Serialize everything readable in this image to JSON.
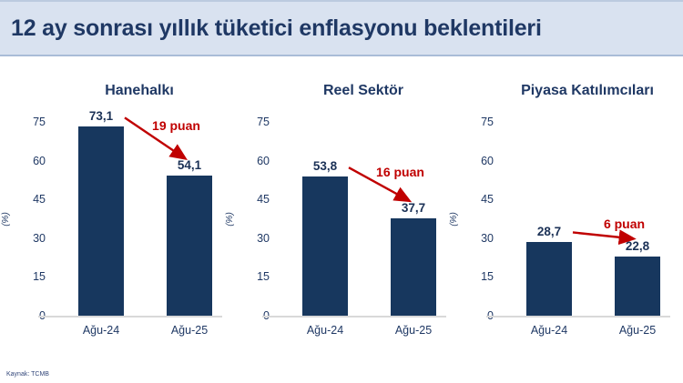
{
  "header": {
    "title": "12 ay sonrası yıllık tüketici enflasyonu beklentileri"
  },
  "footer": {
    "source": "Kaynak: TCMB"
  },
  "colors": {
    "header_bg": "#d9e2f0",
    "header_border": "#a9bcd7",
    "navy": "#1f3864",
    "bar": "#17375e",
    "accent_red": "#c00000",
    "baseline": "#d9d9d9"
  },
  "chart_data": [
    {
      "type": "bar",
      "title": "Hanehalkı",
      "ylabel": "(%)",
      "xlabel": "",
      "categories": [
        "Ağu-24",
        "Ağu-25"
      ],
      "values": [
        73.1,
        54.1
      ],
      "value_labels": [
        "73,1",
        "54,1"
      ],
      "change_label": "19 puan",
      "ylim": [
        0,
        75
      ],
      "yticks": [
        0,
        15,
        30,
        45,
        60,
        75
      ],
      "grid": false,
      "legend": false
    },
    {
      "type": "bar",
      "title": "Reel Sektör",
      "ylabel": "(%)",
      "xlabel": "",
      "categories": [
        "Ağu-24",
        "Ağu-25"
      ],
      "values": [
        53.8,
        37.7
      ],
      "value_labels": [
        "53,8",
        "37,7"
      ],
      "change_label": "16 puan",
      "ylim": [
        0,
        75
      ],
      "yticks": [
        0,
        15,
        30,
        45,
        60,
        75
      ],
      "grid": false,
      "legend": false
    },
    {
      "type": "bar",
      "title": "Piyasa Katılımcıları",
      "ylabel": "(%)",
      "xlabel": "",
      "categories": [
        "Ağu-24",
        "Ağu-25"
      ],
      "values": [
        28.7,
        22.8
      ],
      "value_labels": [
        "28,7",
        "22,8"
      ],
      "change_label": "6 puan",
      "ylim": [
        0,
        75
      ],
      "yticks": [
        0,
        15,
        30,
        45,
        60,
        75
      ],
      "grid": false,
      "legend": false
    }
  ]
}
